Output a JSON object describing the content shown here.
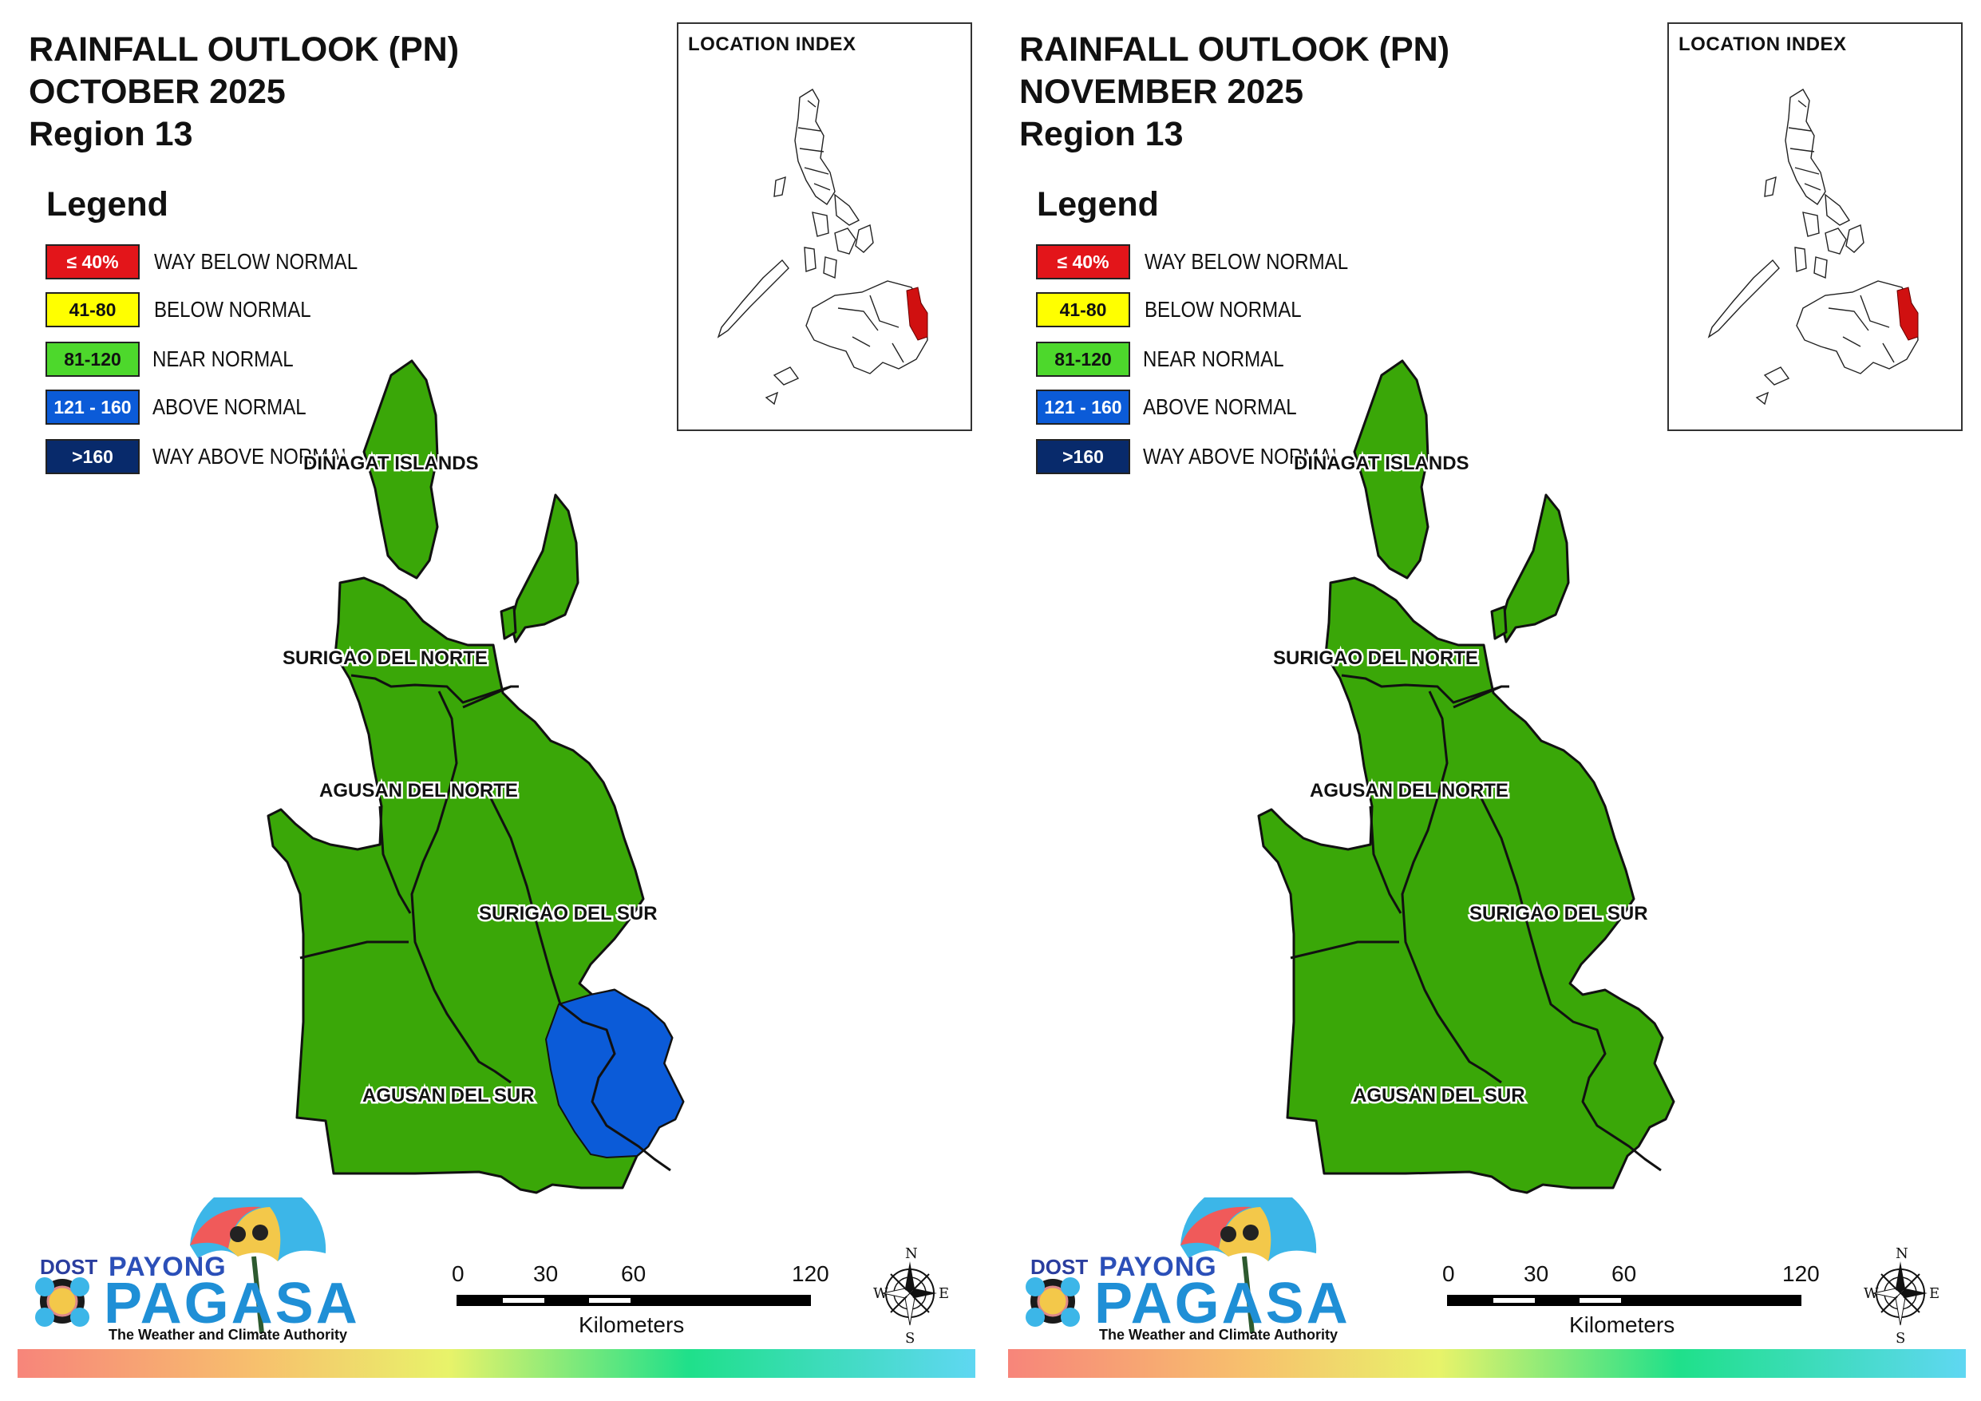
{
  "panels": [
    {
      "title_line1": "RAINFALL OUTLOOK (PN)",
      "title_line2": "OCTOBER 2025",
      "title_line3": "Region 13",
      "has_blue_zone": true
    },
    {
      "title_line1": "RAINFALL OUTLOOK (PN)",
      "title_line2": "NOVEMBER 2025",
      "title_line3": "Region 13",
      "has_blue_zone": false
    }
  ],
  "legend": {
    "title": "Legend",
    "items": [
      {
        "range": "≤ 40%",
        "label": "WAY BELOW NORMAL",
        "color": "#e3151a",
        "text_color": "#ffffff"
      },
      {
        "range": "41-80",
        "label": "BELOW NORMAL",
        "color": "#ffff00",
        "text_color": "#111111"
      },
      {
        "range": "81-120",
        "label": "NEAR NORMAL",
        "color": "#4dd82c",
        "text_color": "#111111"
      },
      {
        "range": "121 - 160",
        "label": "ABOVE NORMAL",
        "color": "#0b5bd8",
        "text_color": "#ffffff"
      },
      {
        "range": ">160",
        "label": "WAY ABOVE NORMAL",
        "color": "#082a6b",
        "text_color": "#ffffff"
      }
    ]
  },
  "map_colors": {
    "near_normal": "#3aa708",
    "above_normal": "#0b5bd8",
    "outline": "#111111"
  },
  "provinces": {
    "dinagat": "DINAGAT ISLANDS",
    "surigao_norte": "SURIGAO DEL NORTE",
    "agusan_norte": "AGUSAN DEL NORTE",
    "surigao_sur": "SURIGAO DEL SUR",
    "agusan_sur": "AGUSAN DEL SUR"
  },
  "inset": {
    "title": "LOCATION INDEX",
    "highlight_color": "#d01010"
  },
  "logo": {
    "dost": "DOST",
    "payong": "PAYONG",
    "pagasa": "PAGASA",
    "tagline": "The Weather and Climate Authority"
  },
  "scale": {
    "ticks": [
      "0",
      "30",
      "60",
      "120"
    ],
    "unit": "Kilometers"
  },
  "compass": {
    "n": "N",
    "s": "S",
    "e": "E",
    "w": "W"
  }
}
